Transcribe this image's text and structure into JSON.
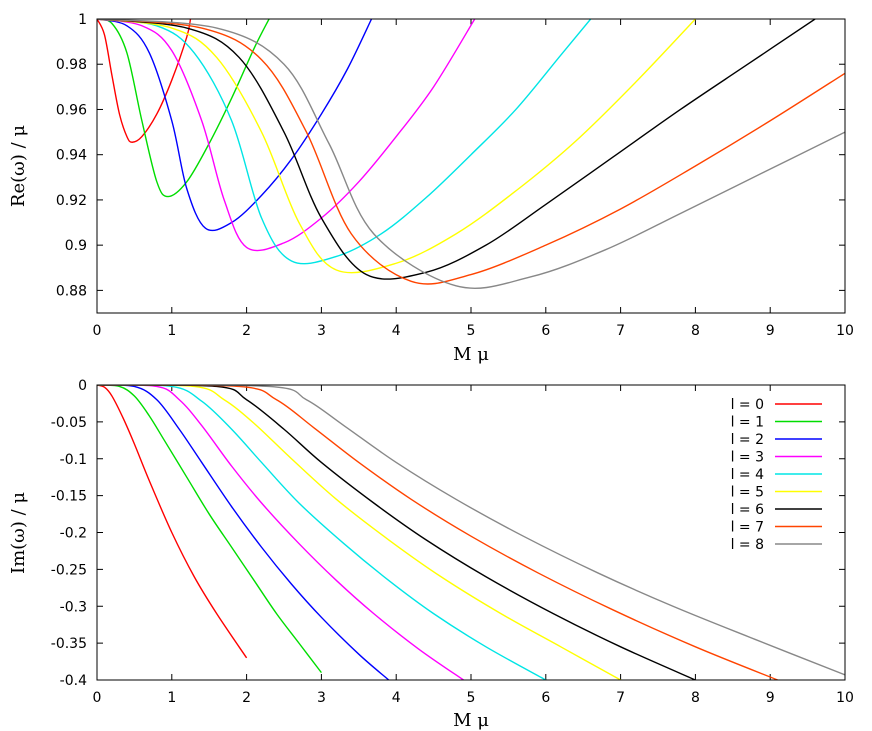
{
  "chart_data": [
    {
      "type": "line",
      "xlabel": "M μ",
      "ylabel": "Re(ω) / μ",
      "xlim": [
        0,
        10
      ],
      "ylim": [
        0.87,
        1.0
      ],
      "xticks": [
        "0",
        "1",
        "2",
        "3",
        "4",
        "5",
        "6",
        "7",
        "8",
        "9",
        "10"
      ],
      "yticks": [
        "0.88",
        "0.9",
        "0.92",
        "0.94",
        "0.96",
        "0.98",
        "1"
      ],
      "grid": false,
      "series": [
        {
          "color": "#ff0000",
          "x": [
            0,
            0.1,
            0.2,
            0.3,
            0.4,
            0.47,
            0.6,
            0.8,
            1.0,
            1.2,
            1.25
          ],
          "y": [
            1.0,
            0.993,
            0.975,
            0.958,
            0.948,
            0.9455,
            0.948,
            0.958,
            0.973,
            0.992,
            1.0
          ]
        },
        {
          "color": "#00dd00",
          "x": [
            0,
            0.2,
            0.4,
            0.6,
            0.8,
            0.95,
            1.2,
            1.5,
            1.8,
            2.1,
            2.3
          ],
          "y": [
            1.0,
            0.998,
            0.985,
            0.955,
            0.928,
            0.9215,
            0.928,
            0.945,
            0.965,
            0.987,
            1.0
          ]
        },
        {
          "color": "#0000ff",
          "x": [
            0,
            0.4,
            0.7,
            1.0,
            1.2,
            1.45,
            1.8,
            2.2,
            2.6,
            3.0,
            3.35,
            3.67
          ],
          "y": [
            1.0,
            0.997,
            0.985,
            0.955,
            0.925,
            0.9075,
            0.91,
            0.922,
            0.938,
            0.958,
            0.978,
            1.0
          ]
        },
        {
          "color": "#ff00ff",
          "x": [
            0,
            0.6,
            1.0,
            1.4,
            1.7,
            2.0,
            2.5,
            3.0,
            3.5,
            4.0,
            4.5,
            5.05
          ],
          "y": [
            1.0,
            0.997,
            0.986,
            0.955,
            0.92,
            0.899,
            0.901,
            0.912,
            0.928,
            0.948,
            0.97,
            1.0
          ]
        },
        {
          "color": "#00e5e5",
          "x": [
            0,
            0.8,
            1.3,
            1.8,
            2.2,
            2.6,
            3.2,
            3.8,
            4.4,
            5.0,
            5.6,
            6.2,
            6.6
          ],
          "y": [
            1.0,
            0.997,
            0.985,
            0.955,
            0.912,
            0.893,
            0.895,
            0.905,
            0.921,
            0.94,
            0.96,
            0.984,
            1.0
          ]
        },
        {
          "color": "#ffff00",
          "x": [
            0,
            1.0,
            1.6,
            2.2,
            2.7,
            3.2,
            4.0,
            4.8,
            5.6,
            6.4,
            7.2,
            8.0
          ],
          "y": [
            1.0,
            0.996,
            0.983,
            0.95,
            0.91,
            0.889,
            0.892,
            0.905,
            0.924,
            0.946,
            0.972,
            1.0
          ]
        },
        {
          "color": "#000000",
          "x": [
            0,
            1.2,
            1.9,
            2.5,
            3.0,
            3.6,
            4.4,
            5.2,
            6.0,
            6.9,
            7.8,
            8.7,
            9.6
          ],
          "y": [
            1.0,
            0.996,
            0.983,
            0.95,
            0.912,
            0.887,
            0.888,
            0.9,
            0.918,
            0.939,
            0.96,
            0.98,
            1.0
          ]
        },
        {
          "color": "#ff4400",
          "x": [
            0,
            1.4,
            2.2,
            2.8,
            3.4,
            4.2,
            5.0,
            6.0,
            7.0,
            8.0,
            9.0,
            10.0
          ],
          "y": [
            1.0,
            0.996,
            0.982,
            0.95,
            0.905,
            0.884,
            0.887,
            0.9,
            0.916,
            0.935,
            0.955,
            0.976
          ]
        },
        {
          "color": "#888888",
          "x": [
            0,
            1.6,
            2.5,
            3.1,
            3.7,
            4.8,
            5.8,
            6.8,
            7.8,
            8.9,
            10.0
          ],
          "y": [
            1.0,
            0.996,
            0.98,
            0.945,
            0.905,
            0.882,
            0.886,
            0.898,
            0.914,
            0.932,
            0.95
          ]
        }
      ]
    },
    {
      "type": "line",
      "xlabel": "M μ",
      "ylabel": "Im(ω) / μ",
      "xlim": [
        0,
        10
      ],
      "ylim": [
        -0.4,
        0
      ],
      "xticks": [
        "0",
        "1",
        "2",
        "3",
        "4",
        "5",
        "6",
        "7",
        "8",
        "9",
        "10"
      ],
      "yticks": [
        "0",
        "-0.05",
        "-0.1",
        "-0.15",
        "-0.2",
        "-0.25",
        "-0.3",
        "-0.35",
        "-0.4"
      ],
      "grid": false,
      "legend": {
        "placement": "top-right"
      },
      "series": [
        {
          "name": "l = 0",
          "color": "#ff0000",
          "x": [
            0,
            0.1,
            0.2,
            0.35,
            0.5,
            0.7,
            1.0,
            1.3,
            1.6,
            2.0
          ],
          "y": [
            0,
            -0.003,
            -0.015,
            -0.045,
            -0.08,
            -0.13,
            -0.2,
            -0.26,
            -0.31,
            -0.37
          ]
        },
        {
          "name": "l = 1",
          "color": "#00dd00",
          "x": [
            0,
            0.3,
            0.5,
            0.7,
            0.9,
            1.2,
            1.5,
            1.8,
            2.1,
            2.4,
            2.7,
            3.0
          ],
          "y": [
            0,
            -0.002,
            -0.015,
            -0.042,
            -0.075,
            -0.125,
            -0.175,
            -0.22,
            -0.265,
            -0.31,
            -0.35,
            -0.39
          ]
        },
        {
          "name": "l = 2",
          "color": "#0000ff",
          "x": [
            0,
            0.5,
            0.8,
            1.1,
            1.4,
            1.8,
            2.2,
            2.6,
            3.0,
            3.5,
            3.9
          ],
          "y": [
            0,
            -0.002,
            -0.02,
            -0.06,
            -0.105,
            -0.165,
            -0.22,
            -0.27,
            -0.315,
            -0.365,
            -0.4
          ]
        },
        {
          "name": "l = 3",
          "color": "#ff00ff",
          "x": [
            0,
            0.8,
            1.1,
            1.4,
            1.8,
            2.2,
            2.7,
            3.2,
            3.7,
            4.3,
            4.9
          ],
          "y": [
            0,
            -0.002,
            -0.02,
            -0.055,
            -0.11,
            -0.16,
            -0.215,
            -0.265,
            -0.31,
            -0.358,
            -0.4
          ]
        },
        {
          "name": "l = 4",
          "color": "#00e5e5",
          "x": [
            0,
            1.0,
            1.4,
            1.8,
            2.2,
            2.7,
            3.3,
            3.9,
            4.5,
            5.2,
            6.0
          ],
          "y": [
            0,
            -0.002,
            -0.022,
            -0.06,
            -0.105,
            -0.16,
            -0.215,
            -0.265,
            -0.31,
            -0.355,
            -0.4
          ]
        },
        {
          "name": "l = 5",
          "color": "#ffff00",
          "x": [
            0,
            1.3,
            1.7,
            2.1,
            2.6,
            3.2,
            3.9,
            4.6,
            5.4,
            6.2,
            7.0
          ],
          "y": [
            0,
            -0.002,
            -0.02,
            -0.052,
            -0.1,
            -0.155,
            -0.21,
            -0.26,
            -0.31,
            -0.355,
            -0.4
          ]
        },
        {
          "name": "l = 6",
          "color": "#000000",
          "x": [
            0,
            1.6,
            2.0,
            2.5,
            3.0,
            3.7,
            4.4,
            5.2,
            6.1,
            7.0,
            8.0
          ],
          "y": [
            0,
            -0.002,
            -0.02,
            -0.06,
            -0.105,
            -0.16,
            -0.21,
            -0.26,
            -0.31,
            -0.355,
            -0.4
          ]
        },
        {
          "name": "l = 7",
          "color": "#ff4400",
          "x": [
            0,
            1.9,
            2.4,
            2.9,
            3.5,
            4.2,
            5.0,
            5.9,
            6.9,
            8.0,
            9.1
          ],
          "y": [
            0,
            -0.002,
            -0.02,
            -0.058,
            -0.105,
            -0.155,
            -0.205,
            -0.255,
            -0.305,
            -0.355,
            -0.4
          ]
        },
        {
          "name": "l = 8",
          "color": "#888888",
          "x": [
            0,
            2.3,
            2.8,
            3.3,
            4.0,
            4.8,
            5.7,
            6.7,
            7.7,
            8.8,
            10.0
          ],
          "y": [
            0,
            -0.002,
            -0.02,
            -0.055,
            -0.105,
            -0.155,
            -0.205,
            -0.255,
            -0.3,
            -0.345,
            -0.393
          ]
        }
      ]
    }
  ]
}
